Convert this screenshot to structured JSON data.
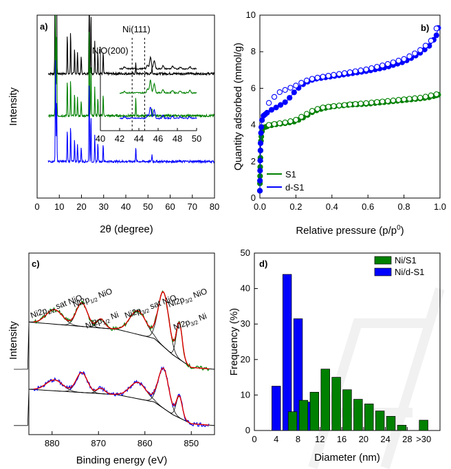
{
  "chart_data": [
    {
      "panel": "a)",
      "type": "line",
      "xlabel": "2θ (degree)",
      "ylabel": "Intensity",
      "xlim": [
        0,
        80
      ],
      "xticks": [
        0,
        10,
        20,
        30,
        40,
        50,
        60,
        70,
        80
      ],
      "series": [
        {
          "color": "#000000",
          "offset": 0.68,
          "peaks": [
            [
              8.2,
              3.0
            ],
            [
              8.7,
              1.55
            ],
            [
              13.6,
              0.22
            ],
            [
              15.1,
              0.24
            ],
            [
              16.9,
              0.14
            ],
            [
              18.2,
              0.12
            ],
            [
              19.9,
              0.1
            ],
            [
              23.5,
              0.62
            ],
            [
              24.3,
              0.34
            ],
            [
              26.0,
              0.18
            ],
            [
              27.4,
              0.12
            ],
            [
              29.8,
              0.12
            ],
            [
              44.5,
              0.06
            ],
            [
              51.8,
              0.04
            ]
          ]
        },
        {
          "color": "#008000",
          "offset": 0.45,
          "peaks": [
            [
              8.3,
              0.7
            ],
            [
              8.8,
              0.46
            ],
            [
              13.6,
              0.2
            ],
            [
              15.1,
              0.2
            ],
            [
              16.9,
              0.12
            ],
            [
              18.2,
              0.1
            ],
            [
              19.9,
              0.08
            ],
            [
              23.5,
              0.5
            ],
            [
              24.3,
              0.28
            ],
            [
              26.0,
              0.16
            ],
            [
              27.4,
              0.1
            ],
            [
              29.8,
              0.12
            ],
            [
              44.5,
              0.1
            ],
            [
              51.8,
              0.04
            ]
          ]
        },
        {
          "color": "#0000ff",
          "offset": 0.2,
          "peaks": [
            [
              8.3,
              0.55
            ],
            [
              8.8,
              0.35
            ],
            [
              13.6,
              0.18
            ],
            [
              15.1,
              0.2
            ],
            [
              16.9,
              0.12
            ],
            [
              18.2,
              0.1
            ],
            [
              19.9,
              0.08
            ],
            [
              23.5,
              0.45
            ],
            [
              24.3,
              0.26
            ],
            [
              26.0,
              0.14
            ],
            [
              27.4,
              0.1
            ],
            [
              29.8,
              0.1
            ],
            [
              44.5,
              0.08
            ],
            [
              51.8,
              0.04
            ]
          ]
        }
      ],
      "inset": {
        "xlim": [
          40,
          50
        ],
        "xticks": [
          40,
          42,
          44,
          46,
          48,
          50
        ],
        "annotations": [
          "Ni(111)",
          "NiO(200)"
        ],
        "dashed_lines_at": [
          43.3,
          44.6
        ]
      }
    },
    {
      "panel": "b)",
      "type": "scatter",
      "xlabel": "Relative pressure (p/p⁰)",
      "ylabel": "Quantity adsorbed (mmol/g)",
      "xlim": [
        0.0,
        1.0
      ],
      "ylim": [
        0,
        10
      ],
      "xticks": [
        0.0,
        0.2,
        0.4,
        0.6,
        0.8,
        1.0
      ],
      "yticks": [
        0,
        2,
        4,
        6,
        8,
        10
      ],
      "legend": "bottom-left",
      "series": [
        {
          "name": "S1",
          "color": "#008000",
          "adsorption": [
            [
              0.0,
              0.4
            ],
            [
              0.001,
              1.2
            ],
            [
              0.003,
              2.2
            ],
            [
              0.005,
              3.0
            ],
            [
              0.01,
              3.6
            ],
            [
              0.02,
              3.85
            ],
            [
              0.05,
              3.95
            ],
            [
              0.1,
              4.05
            ],
            [
              0.15,
              4.1
            ],
            [
              0.2,
              4.2
            ],
            [
              0.25,
              4.45
            ],
            [
              0.3,
              4.75
            ],
            [
              0.35,
              4.9
            ],
            [
              0.4,
              5.0
            ],
            [
              0.5,
              5.1
            ],
            [
              0.6,
              5.15
            ],
            [
              0.7,
              5.25
            ],
            [
              0.8,
              5.35
            ],
            [
              0.9,
              5.45
            ],
            [
              0.95,
              5.52
            ],
            [
              0.99,
              5.65
            ]
          ],
          "desorption": [
            [
              0.99,
              5.7
            ],
            [
              0.9,
              5.5
            ],
            [
              0.8,
              5.4
            ],
            [
              0.7,
              5.3
            ],
            [
              0.6,
              5.2
            ],
            [
              0.5,
              5.12
            ],
            [
              0.4,
              5.02
            ],
            [
              0.35,
              4.95
            ],
            [
              0.3,
              4.82
            ],
            [
              0.25,
              4.55
            ],
            [
              0.2,
              4.28
            ],
            [
              0.15,
              4.15
            ],
            [
              0.1,
              4.08
            ],
            [
              0.05,
              4.0
            ]
          ]
        },
        {
          "name": "d-S1",
          "color": "#0000ff",
          "adsorption": [
            [
              0.0,
              0.4
            ],
            [
              0.001,
              1.5
            ],
            [
              0.003,
              2.6
            ],
            [
              0.005,
              3.4
            ],
            [
              0.01,
              4.2
            ],
            [
              0.02,
              4.5
            ],
            [
              0.05,
              4.75
            ],
            [
              0.1,
              5.0
            ],
            [
              0.15,
              5.3
            ],
            [
              0.2,
              5.9
            ],
            [
              0.25,
              6.3
            ],
            [
              0.3,
              6.5
            ],
            [
              0.4,
              6.65
            ],
            [
              0.5,
              6.8
            ],
            [
              0.6,
              6.95
            ],
            [
              0.7,
              7.15
            ],
            [
              0.8,
              7.45
            ],
            [
              0.85,
              7.7
            ],
            [
              0.9,
              8.0
            ],
            [
              0.95,
              8.4
            ],
            [
              0.98,
              8.9
            ],
            [
              0.99,
              9.3
            ]
          ],
          "desorption": [
            [
              0.99,
              9.5
            ],
            [
              0.95,
              8.6
            ],
            [
              0.9,
              8.15
            ],
            [
              0.85,
              7.85
            ],
            [
              0.8,
              7.6
            ],
            [
              0.7,
              7.3
            ],
            [
              0.6,
              7.05
            ],
            [
              0.5,
              6.88
            ],
            [
              0.4,
              6.72
            ],
            [
              0.3,
              6.55
            ],
            [
              0.25,
              6.4
            ],
            [
              0.2,
              6.15
            ],
            [
              0.15,
              5.95
            ],
            [
              0.1,
              5.75
            ],
            [
              0.05,
              5.2
            ]
          ]
        }
      ]
    },
    {
      "panel": "c)",
      "type": "line",
      "xlabel": "Binding energy (eV)",
      "ylabel": "Intensity",
      "xlim": [
        885,
        845
      ],
      "xticks": [
        880,
        870,
        860,
        850
      ],
      "annotations": [
        "Ni2p1/2 sat NiO",
        "Ni2p1/2 NiO",
        "Ni2p1/2 Ni",
        "Ni2p3/2 sat NiO",
        "Ni2p3/2 NiO",
        "Ni2p3/2 Ni"
      ],
      "spectra": [
        {
          "color": "#008000",
          "baseline": [
            [
              885,
              0.62
            ],
            [
              866,
              0.58
            ],
            [
              858,
              0.53
            ],
            [
              854,
              0.44
            ],
            [
              850,
              0.37
            ],
            [
              845,
              0.36
            ]
          ],
          "peaks": [
            [
              879.5,
              0.08,
              2.5
            ],
            [
              873.6,
              0.13,
              1.7
            ],
            [
              869.5,
              0.05,
              1.2
            ],
            [
              861.5,
              0.13,
              2.5
            ],
            [
              856.0,
              0.3,
              1.6
            ],
            [
              852.6,
              0.2,
              0.9
            ]
          ]
        },
        {
          "color": "#0000ff",
          "baseline": [
            [
              885,
              0.25
            ],
            [
              866,
              0.22
            ],
            [
              858,
              0.18
            ],
            [
              854,
              0.11
            ],
            [
              850,
              0.06
            ],
            [
              845,
              0.05
            ]
          ],
          "peaks": [
            [
              879.5,
              0.06,
              2.5
            ],
            [
              873.6,
              0.11,
              1.7
            ],
            [
              869.5,
              0.03,
              1.2
            ],
            [
              861.5,
              0.09,
              2.5
            ],
            [
              856.0,
              0.22,
              1.6
            ],
            [
              852.6,
              0.12,
              0.9
            ]
          ]
        }
      ]
    },
    {
      "panel": "d)",
      "type": "bar",
      "xlabel": "Diameter (nm)",
      "ylabel": "Frequency (%)",
      "ylim": [
        0,
        50
      ],
      "yticks": [
        0,
        10,
        20,
        30,
        40,
        50
      ],
      "xtick_labels": [
        "0",
        "4",
        "8",
        "12",
        "16",
        "20",
        "24",
        "28",
        ">30"
      ],
      "legend": "top-right",
      "series": [
        {
          "name": "Ni/S1",
          "color": "#008000",
          "bars": [
            [
              7,
              5.3
            ],
            [
              9,
              8.5
            ],
            [
              11,
              10.8
            ],
            [
              13,
              17.3
            ],
            [
              15,
              15.0
            ],
            [
              17,
              11.5
            ],
            [
              19,
              8.8
            ],
            [
              21,
              7.5
            ],
            [
              23,
              5.5
            ],
            [
              25,
              4.0
            ],
            [
              27,
              1.5
            ],
            [
              31,
              2.9
            ]
          ]
        },
        {
          "name": "Ni/d-S1",
          "color": "#0000ff",
          "bars": [
            [
              4,
              12.5
            ],
            [
              6,
              44.0
            ],
            [
              8,
              31.5
            ],
            [
              10,
              8.0
            ]
          ]
        }
      ]
    }
  ],
  "panel_a": {
    "label": "a)",
    "xlabel": "2θ (degree)",
    "ylabel": "Intensity",
    "inset_labels": [
      "Ni(111)",
      "NiO(200)"
    ]
  },
  "panel_b": {
    "label": "b)",
    "ylabel": "Quantity adsorbed (mmol/g)",
    "legend": [
      "S1",
      "d-S1"
    ]
  },
  "panel_c": {
    "label": "c)",
    "xlabel": "Binding energy (eV)",
    "ylabel": "Intensity"
  },
  "panel_d": {
    "label": "d)",
    "xlabel": "Diameter (nm)",
    "ylabel": "Frequency (%)",
    "legend": [
      "Ni/S1",
      "Ni/d-S1"
    ]
  }
}
